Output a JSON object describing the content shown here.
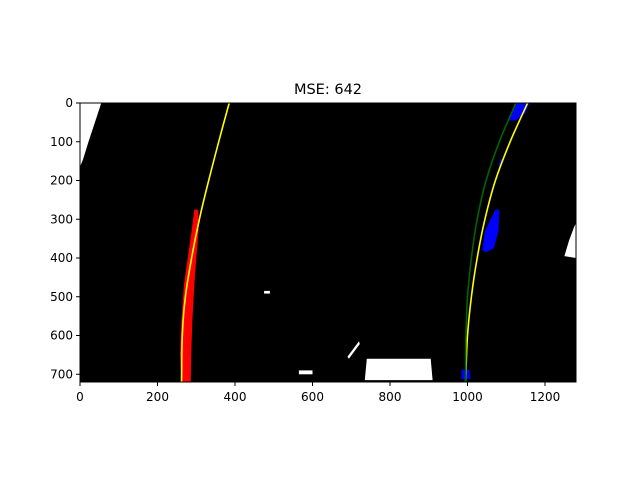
{
  "chart_data": {
    "type": "image-with-line-overlay",
    "title": "MSE: 642",
    "xlabel": "",
    "ylabel": "",
    "xlim": [
      0,
      1280
    ],
    "ylim": [
      720,
      0
    ],
    "xticks": [
      0,
      200,
      400,
      600,
      800,
      1000,
      1200
    ],
    "yticks": [
      0,
      100,
      200,
      300,
      400,
      500,
      600,
      700
    ],
    "background_color": "#000000",
    "colors": {
      "left_pixels": "#ff0000",
      "right_pixels": "#0000ff",
      "noise_pixels": "#ffffff",
      "fit_lines": "#ffff00",
      "ground_truth_line": "#006400"
    },
    "series": [
      {
        "role": "left-fit",
        "color": "#ffff00",
        "points": [
          [
            385,
            0
          ],
          [
            358,
            100
          ],
          [
            332,
            200
          ],
          [
            308,
            300
          ],
          [
            288,
            400
          ],
          [
            272,
            500
          ],
          [
            264,
            600
          ],
          [
            262,
            720
          ]
        ]
      },
      {
        "role": "right-fit",
        "color": "#ffff00",
        "points": [
          [
            1155,
            0
          ],
          [
            1110,
            100
          ],
          [
            1072,
            200
          ],
          [
            1045,
            300
          ],
          [
            1025,
            400
          ],
          [
            1010,
            500
          ],
          [
            1000,
            600
          ],
          [
            995,
            720
          ]
        ]
      },
      {
        "role": "right-reference",
        "color": "#006400",
        "points": [
          [
            1125,
            0
          ],
          [
            1082,
            100
          ],
          [
            1048,
            200
          ],
          [
            1025,
            300
          ],
          [
            1010,
            400
          ],
          [
            1000,
            500
          ],
          [
            996,
            600
          ],
          [
            995,
            720
          ]
        ]
      }
    ],
    "blobs": [
      {
        "role": "left-pixels",
        "color": "#ff0000",
        "outline": [
          [
            295,
            275
          ],
          [
            305,
            275
          ],
          [
            306,
            330
          ],
          [
            300,
            400
          ],
          [
            295,
            470
          ],
          [
            290,
            560
          ],
          [
            287,
            650
          ],
          [
            286,
            720
          ],
          [
            262,
            720
          ],
          [
            258,
            650
          ],
          [
            262,
            560
          ],
          [
            268,
            470
          ],
          [
            278,
            400
          ],
          [
            288,
            330
          ]
        ]
      },
      {
        "role": "right-pixels-top",
        "color": "#0000ff",
        "outline": [
          [
            1128,
            0
          ],
          [
            1160,
            0
          ],
          [
            1150,
            25
          ],
          [
            1125,
            45
          ],
          [
            1108,
            45
          ],
          [
            1114,
            25
          ]
        ]
      },
      {
        "role": "right-pixels-mid",
        "color": "#0000ff",
        "outline": [
          [
            1072,
            275
          ],
          [
            1082,
            275
          ],
          [
            1080,
            330
          ],
          [
            1068,
            375
          ],
          [
            1048,
            385
          ],
          [
            1038,
            380
          ],
          [
            1045,
            330
          ]
        ]
      },
      {
        "role": "right-pixels-dash",
        "color": "#0000ff",
        "outline": [
          [
            1085,
            145
          ],
          [
            1092,
            145
          ],
          [
            1086,
            165
          ],
          [
            1080,
            165
          ]
        ]
      },
      {
        "role": "right-pixels-bottom",
        "color": "#0000ff",
        "outline": [
          [
            985,
            688
          ],
          [
            1005,
            688
          ],
          [
            1008,
            712
          ],
          [
            984,
            712
          ]
        ]
      }
    ],
    "noise": [
      {
        "color": "#ffffff",
        "outline": [
          [
            0,
            0
          ],
          [
            55,
            0
          ],
          [
            22,
            100
          ],
          [
            8,
            145
          ],
          [
            0,
            165
          ]
        ]
      },
      {
        "color": "#ffffff",
        "outline": [
          [
            1280,
            310
          ],
          [
            1280,
            400
          ],
          [
            1250,
            395
          ],
          [
            1262,
            355
          ],
          [
            1275,
            320
          ]
        ]
      },
      {
        "color": "#ffffff",
        "outline": [
          [
            690,
            655
          ],
          [
            720,
            615
          ],
          [
            722,
            622
          ],
          [
            694,
            660
          ]
        ]
      },
      {
        "color": "#ffffff",
        "outline": [
          [
            740,
            660
          ],
          [
            905,
            660
          ],
          [
            910,
            715
          ],
          [
            735,
            715
          ]
        ]
      },
      {
        "color": "#ffffff",
        "outline": [
          [
            565,
            690
          ],
          [
            600,
            690
          ],
          [
            600,
            700
          ],
          [
            565,
            700
          ]
        ]
      },
      {
        "color": "#ffffff",
        "outline": [
          [
            475,
            485
          ],
          [
            490,
            485
          ],
          [
            490,
            492
          ],
          [
            475,
            492
          ]
        ]
      }
    ]
  }
}
